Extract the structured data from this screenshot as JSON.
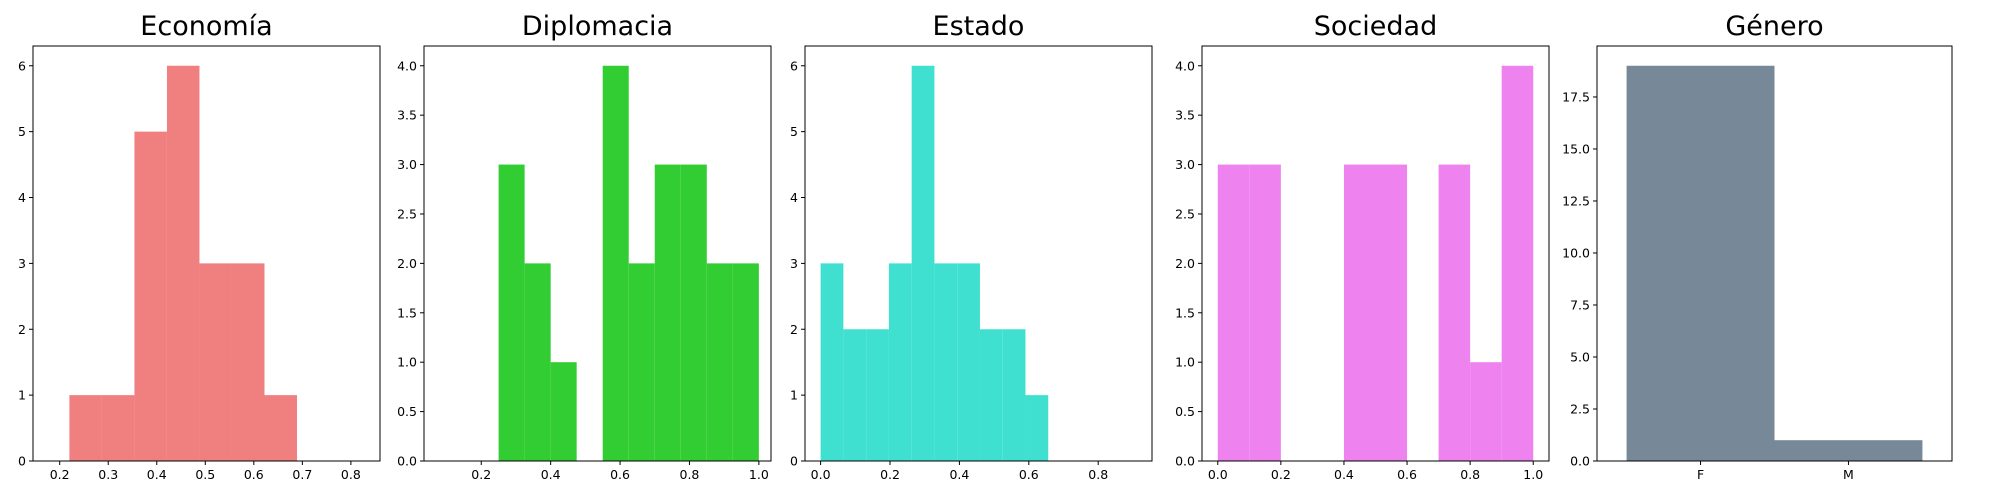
{
  "chart_data": [
    {
      "type": "histogram",
      "title": "Economía",
      "color": "#f08080",
      "xlim": [
        0.145,
        0.86
      ],
      "ylim": [
        0,
        6.3
      ],
      "xticks": [
        "0.2",
        "0.3",
        "0.4",
        "0.5",
        "0.6",
        "0.7",
        "0.8"
      ],
      "xtick_values": [
        0.2,
        0.3,
        0.4,
        0.5,
        0.6,
        0.7,
        0.8
      ],
      "yticks": [
        "0",
        "1",
        "2",
        "3",
        "4",
        "5",
        "6"
      ],
      "ytick_values": [
        0,
        1,
        2,
        3,
        4,
        5,
        6
      ],
      "bins": [
        {
          "x0": 0.22,
          "x1": 0.287,
          "count": 1
        },
        {
          "x0": 0.287,
          "x1": 0.354,
          "count": 1
        },
        {
          "x0": 0.354,
          "x1": 0.421,
          "count": 5
        },
        {
          "x0": 0.421,
          "x1": 0.488,
          "count": 6
        },
        {
          "x0": 0.488,
          "x1": 0.555,
          "count": 3
        },
        {
          "x0": 0.555,
          "x1": 0.622,
          "count": 3
        },
        {
          "x0": 0.622,
          "x1": 0.689,
          "count": 1
        }
      ]
    },
    {
      "type": "histogram",
      "title": "Diplomacia",
      "color": "#32cd32",
      "xlim": [
        0.035,
        1.035
      ],
      "ylim": [
        0,
        4.2
      ],
      "xticks": [
        "0.2",
        "0.4",
        "0.6",
        "0.8",
        "1.0"
      ],
      "xtick_values": [
        0.2,
        0.4,
        0.6,
        0.8,
        1.0
      ],
      "yticks": [
        "0.0",
        "0.5",
        "1.0",
        "1.5",
        "2.0",
        "2.5",
        "3.0",
        "3.5",
        "4.0"
      ],
      "ytick_values": [
        0,
        0.5,
        1.0,
        1.5,
        2.0,
        2.5,
        3.0,
        3.5,
        4.0
      ],
      "bins": [
        {
          "x0": 0.25,
          "x1": 0.325,
          "count": 3
        },
        {
          "x0": 0.325,
          "x1": 0.4,
          "count": 2
        },
        {
          "x0": 0.4,
          "x1": 0.475,
          "count": 1
        },
        {
          "x0": 0.475,
          "x1": 0.55,
          "count": 0
        },
        {
          "x0": 0.55,
          "x1": 0.625,
          "count": 4
        },
        {
          "x0": 0.625,
          "x1": 0.7,
          "count": 2
        },
        {
          "x0": 0.7,
          "x1": 0.775,
          "count": 3
        },
        {
          "x0": 0.775,
          "x1": 0.85,
          "count": 3
        },
        {
          "x0": 0.85,
          "x1": 0.925,
          "count": 2
        },
        {
          "x0": 0.925,
          "x1": 1.0,
          "count": 2
        }
      ]
    },
    {
      "type": "histogram",
      "title": "Estado",
      "color": "#40e0d0",
      "xlim": [
        -0.045,
        0.955
      ],
      "ylim": [
        0,
        6.3
      ],
      "xticks": [
        "0.0",
        "0.2",
        "0.4",
        "0.6",
        "0.8"
      ],
      "xtick_values": [
        0.0,
        0.2,
        0.4,
        0.6,
        0.8
      ],
      "yticks": [
        "0",
        "1",
        "2",
        "3",
        "4",
        "5",
        "6"
      ],
      "ytick_values": [
        0,
        1,
        2,
        3,
        4,
        5,
        6
      ],
      "bins": [
        {
          "x0": 0.0,
          "x1": 0.0656,
          "count": 3
        },
        {
          "x0": 0.0656,
          "x1": 0.1312,
          "count": 2
        },
        {
          "x0": 0.1312,
          "x1": 0.1968,
          "count": 2
        },
        {
          "x0": 0.1968,
          "x1": 0.2624,
          "count": 3
        },
        {
          "x0": 0.2624,
          "x1": 0.328,
          "count": 6
        },
        {
          "x0": 0.328,
          "x1": 0.3936,
          "count": 3
        },
        {
          "x0": 0.3936,
          "x1": 0.4592,
          "count": 3
        },
        {
          "x0": 0.4592,
          "x1": 0.5248,
          "count": 2
        },
        {
          "x0": 0.5248,
          "x1": 0.5904,
          "count": 2
        },
        {
          "x0": 0.5904,
          "x1": 0.656,
          "count": 1
        }
      ]
    },
    {
      "type": "histogram",
      "title": "Sociedad",
      "color": "#ee82ee",
      "xlim": [
        -0.05,
        1.05
      ],
      "ylim": [
        0,
        4.2
      ],
      "xticks": [
        "0.0",
        "0.2",
        "0.4",
        "0.6",
        "0.8",
        "1.0"
      ],
      "xtick_values": [
        0.0,
        0.2,
        0.4,
        0.6,
        0.8,
        1.0
      ],
      "yticks": [
        "0.0",
        "0.5",
        "1.0",
        "1.5",
        "2.0",
        "2.5",
        "3.0",
        "3.5",
        "4.0"
      ],
      "ytick_values": [
        0,
        0.5,
        1.0,
        1.5,
        2.0,
        2.5,
        3.0,
        3.5,
        4.0
      ],
      "bins": [
        {
          "x0": 0.0,
          "x1": 0.1,
          "count": 3
        },
        {
          "x0": 0.1,
          "x1": 0.2,
          "count": 3
        },
        {
          "x0": 0.2,
          "x1": 0.3,
          "count": 0
        },
        {
          "x0": 0.3,
          "x1": 0.4,
          "count": 0
        },
        {
          "x0": 0.4,
          "x1": 0.5,
          "count": 3
        },
        {
          "x0": 0.5,
          "x1": 0.6,
          "count": 3
        },
        {
          "x0": 0.6,
          "x1": 0.7,
          "count": 0
        },
        {
          "x0": 0.7,
          "x1": 0.8,
          "count": 3
        },
        {
          "x0": 0.8,
          "x1": 0.9,
          "count": 1
        },
        {
          "x0": 0.9,
          "x1": 1.0,
          "count": 4
        }
      ]
    },
    {
      "type": "bar",
      "title": "Género",
      "color": "#778899",
      "categories": [
        "F",
        "M"
      ],
      "values": [
        19,
        1
      ],
      "xlim": [
        -0.7,
        1.7
      ],
      "ylim": [
        0,
        19.95
      ],
      "xtick_values": [
        0,
        1
      ],
      "yticks": [
        "0.0",
        "2.5",
        "5.0",
        "7.5",
        "10.0",
        "12.5",
        "15.0",
        "17.5"
      ],
      "ytick_values": [
        0,
        2.5,
        5.0,
        7.5,
        10.0,
        12.5,
        15.0,
        17.5
      ]
    }
  ]
}
